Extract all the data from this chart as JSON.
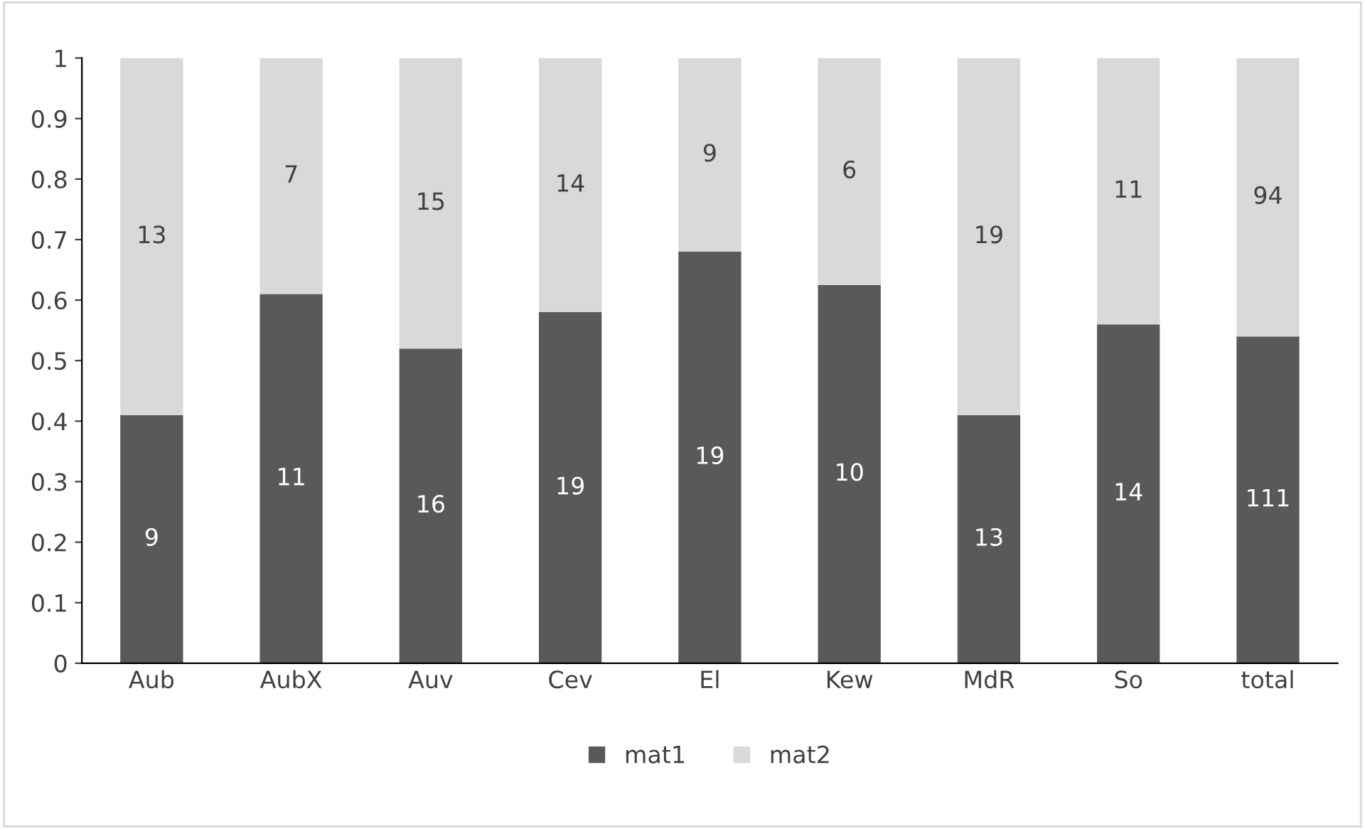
{
  "chart_data": {
    "type": "bar",
    "stacked": true,
    "categories": [
      "Aub",
      "AubX",
      "Auv",
      "Cev",
      "El",
      "Kew",
      "MdR",
      "So",
      "total"
    ],
    "series": [
      {
        "name": "mat1",
        "color": "#595959",
        "values": [
          0.41,
          0.61,
          0.52,
          0.58,
          0.68,
          0.625,
          0.41,
          0.56,
          0.54
        ]
      },
      {
        "name": "mat2",
        "color": "#d9d9d9",
        "values": [
          0.59,
          0.39,
          0.48,
          0.42,
          0.32,
          0.375,
          0.59,
          0.44,
          0.46
        ]
      }
    ],
    "annotations": [
      "9",
      "11",
      "16",
      "19",
      "19",
      "10",
      "13",
      "14",
      "111",
      "13",
      "7",
      "15",
      "14",
      "9",
      "6",
      "19",
      "11",
      "94"
    ],
    "ylim": [
      0,
      1
    ],
    "yticks": [
      0,
      0.1,
      0.2,
      0.3,
      0.4,
      0.5,
      0.6,
      0.7,
      0.8,
      0.9,
      1
    ],
    "grid": false,
    "legend": "bottom"
  }
}
